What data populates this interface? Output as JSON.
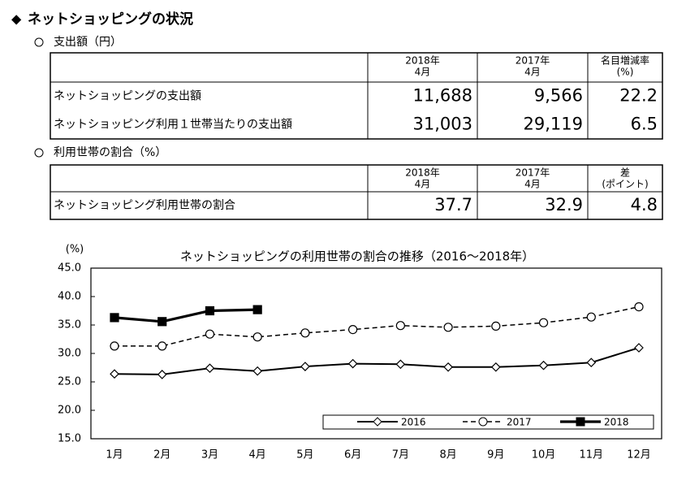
{
  "header": {
    "title": "ネットショッピングの状況"
  },
  "sections": [
    {
      "heading": "支出額（円）",
      "table": {
        "columns": [
          [
            "2018年",
            "4月"
          ],
          [
            "2017年",
            "4月"
          ],
          [
            "名目増減率",
            "(%)"
          ]
        ],
        "rows": [
          [
            "ネットショッピングの支出額",
            "11,688",
            "9,566",
            "22.2"
          ],
          [
            "ネットショッピング利用１世帯当たりの支出額",
            "31,003",
            "29,119",
            "6.5"
          ]
        ]
      }
    },
    {
      "heading": "利用世帯の割合（%）",
      "table": {
        "columns": [
          [
            "2018年",
            "4月"
          ],
          [
            "2017年",
            "4月"
          ],
          [
            "差",
            "(ポイント)"
          ]
        ],
        "rows": [
          [
            "ネットショッピング利用世帯の割合",
            "37.7",
            "32.9",
            "4.8"
          ]
        ]
      }
    }
  ],
  "chart_data": {
    "type": "line",
    "title": "ネットショッピングの利用世帯の割合の推移（2016～2018年）",
    "y_label": "(%)",
    "categories": [
      "1月",
      "2月",
      "3月",
      "4月",
      "5月",
      "6月",
      "7月",
      "8月",
      "9月",
      "10月",
      "11月",
      "12月"
    ],
    "series": [
      {
        "name": "2016",
        "color": "#000000",
        "line_style": "solid",
        "marker": "diamond",
        "marker_fill": "#ffffff",
        "values": [
          26.4,
          26.3,
          27.4,
          26.9,
          27.7,
          28.2,
          28.1,
          27.6,
          27.6,
          27.9,
          28.4,
          31.0
        ]
      },
      {
        "name": "2017",
        "color": "#000000",
        "line_style": "dashed",
        "marker": "circle",
        "marker_fill": "#ffffff",
        "values": [
          31.3,
          31.3,
          33.4,
          32.9,
          33.6,
          34.2,
          34.9,
          34.6,
          34.8,
          35.4,
          36.4,
          38.2
        ]
      },
      {
        "name": "2018",
        "color": "#000000",
        "line_style": "solid",
        "marker": "square",
        "marker_fill": "#000000",
        "values": [
          36.3,
          35.6,
          37.5,
          37.7,
          null,
          null,
          null,
          null,
          null,
          null,
          null,
          null
        ]
      }
    ],
    "ylim": [
      15,
      45
    ],
    "yticks": [
      {
        "value": 15,
        "label": "15.0"
      },
      {
        "value": 20,
        "label": "20.0"
      },
      {
        "value": 25,
        "label": "25.0"
      },
      {
        "value": 30,
        "label": "30.0"
      },
      {
        "value": 35,
        "label": "35.0"
      },
      {
        "value": 40,
        "label": "40.0"
      },
      {
        "value": 45,
        "label": "45.0"
      }
    ],
    "grid": false,
    "legend": "bottom-right"
  }
}
